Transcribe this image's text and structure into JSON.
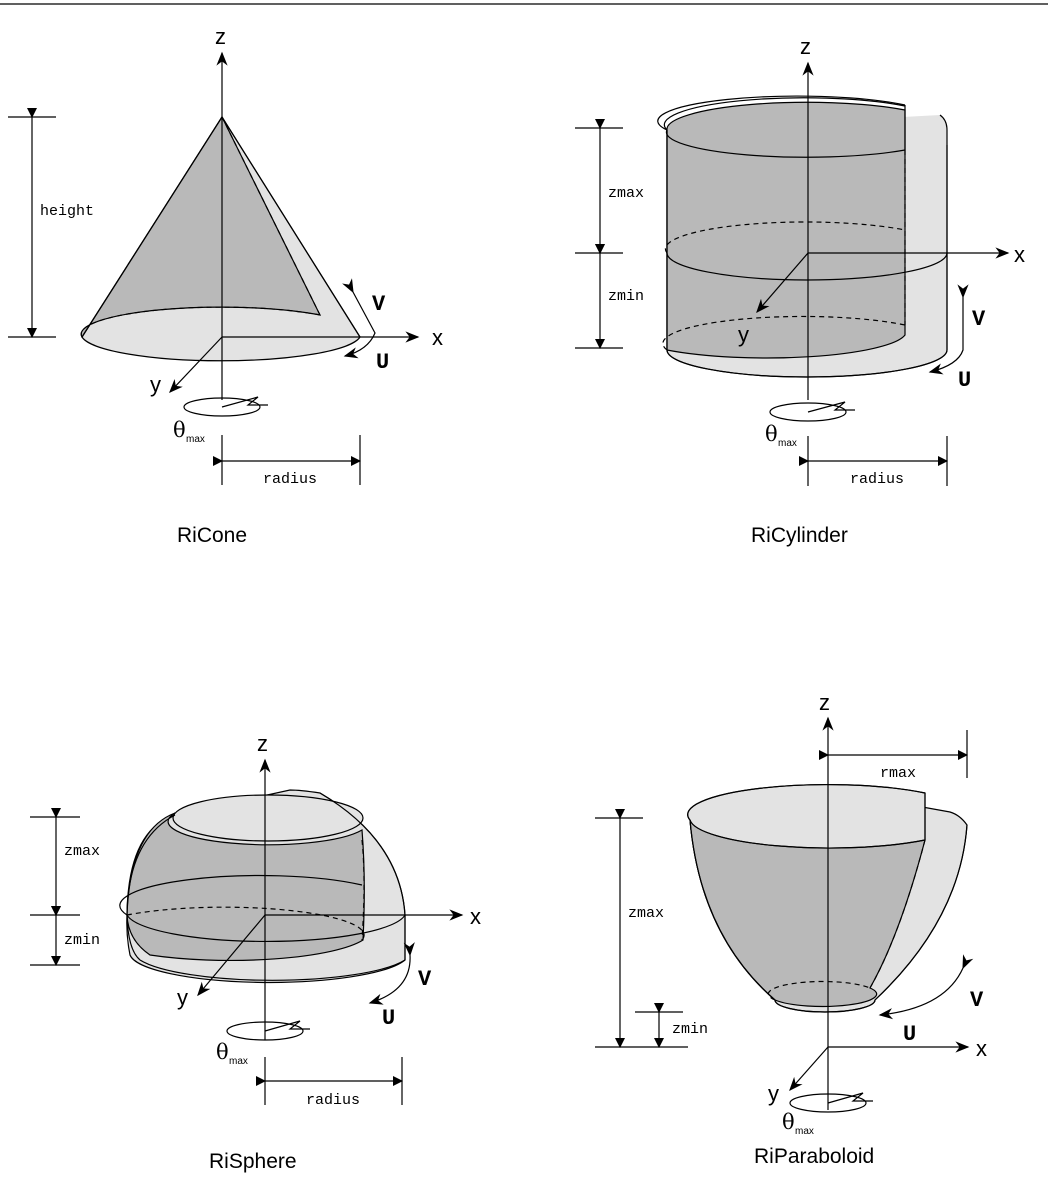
{
  "axes": {
    "x": "x",
    "y": "y",
    "z": "z"
  },
  "param": {
    "u": "U",
    "v": "V",
    "theta": "θ",
    "theta_sub": "max"
  },
  "cone": {
    "caption": "RiCone",
    "height": "height",
    "radius": "radius"
  },
  "cylinder": {
    "caption": "RiCylinder",
    "zmax": "zmax",
    "zmin": "zmin",
    "radius": "radius"
  },
  "sphere": {
    "caption": "RiSphere",
    "zmax": "zmax",
    "zmin": "zmin",
    "radius": "radius"
  },
  "paraboloid": {
    "caption": "RiParaboloid",
    "zmax": "zmax",
    "zmin": "zmin",
    "rmax": "rmax"
  }
}
